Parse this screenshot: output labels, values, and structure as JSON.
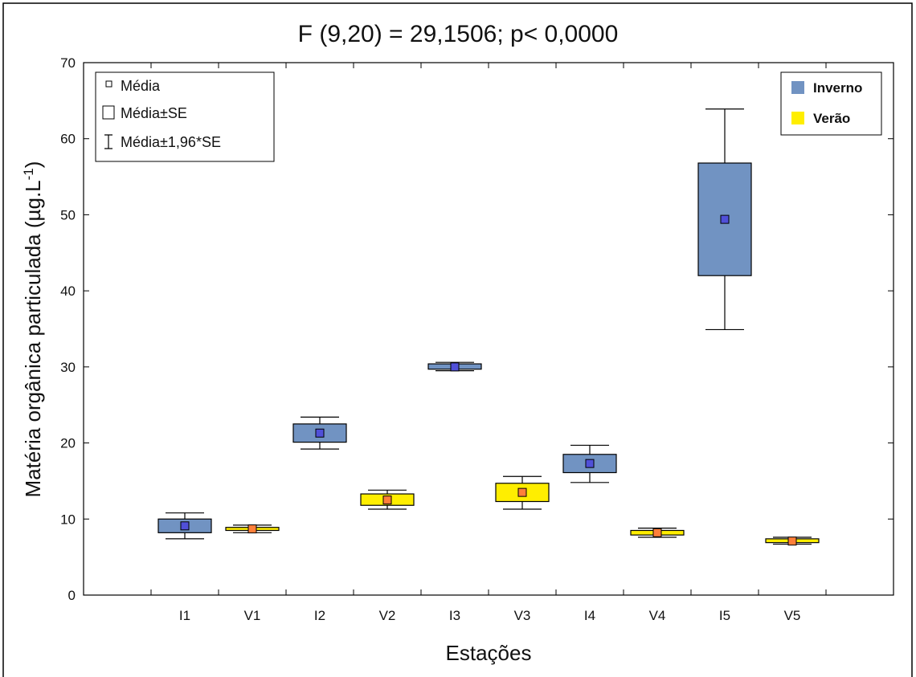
{
  "chart_data": {
    "type": "box",
    "title": "F (9,20) = 29,1506; p< 0,0000",
    "xlabel": "Estações",
    "ylabel_main": "Matéria orgânica particulada (µg.L",
    "ylabel_sup": "-1",
    "ylabel_close": ")",
    "ylim": [
      0,
      70
    ],
    "yticks": [
      0,
      10,
      20,
      30,
      40,
      50,
      60,
      70
    ],
    "grid": false,
    "categories": [
      "I1",
      "V1",
      "I2",
      "V2",
      "I3",
      "V3",
      "I4",
      "V4",
      "I5",
      "V5"
    ],
    "groups": [
      "Inverno",
      "Verão",
      "Inverno",
      "Verão",
      "Inverno",
      "Verão",
      "Inverno",
      "Verão",
      "Inverno",
      "Verão"
    ],
    "mean": [
      9.1,
      8.7,
      21.3,
      12.5,
      30.0,
      13.5,
      17.3,
      8.2,
      49.4,
      7.1
    ],
    "se_low": [
      8.2,
      8.5,
      20.1,
      11.8,
      29.7,
      12.3,
      16.1,
      7.9,
      42.0,
      6.9
    ],
    "se_high": [
      10.0,
      8.9,
      22.5,
      13.3,
      30.4,
      14.7,
      18.5,
      8.5,
      56.8,
      7.4
    ],
    "ci_low": [
      7.4,
      8.2,
      19.2,
      11.3,
      29.5,
      11.3,
      14.8,
      7.6,
      34.9,
      6.7
    ],
    "ci_high": [
      10.8,
      9.2,
      23.4,
      13.8,
      30.6,
      15.6,
      19.7,
      8.8,
      63.9,
      7.6
    ],
    "stats_legend": {
      "position": "top-left",
      "items": [
        "Média",
        "Média±SE",
        "Média±1,96*SE"
      ]
    },
    "group_legend": {
      "position": "top-right",
      "items": [
        {
          "label": "Inverno",
          "color": "#7193c2"
        },
        {
          "label": "Verão",
          "color": "#ffee00"
        }
      ]
    },
    "colors": {
      "Inverno_box": "#7193c2",
      "Inverno_mean": "#5050d8",
      "Verao_box": "#ffee00",
      "Verao_mean": "#ff7f3a"
    }
  }
}
